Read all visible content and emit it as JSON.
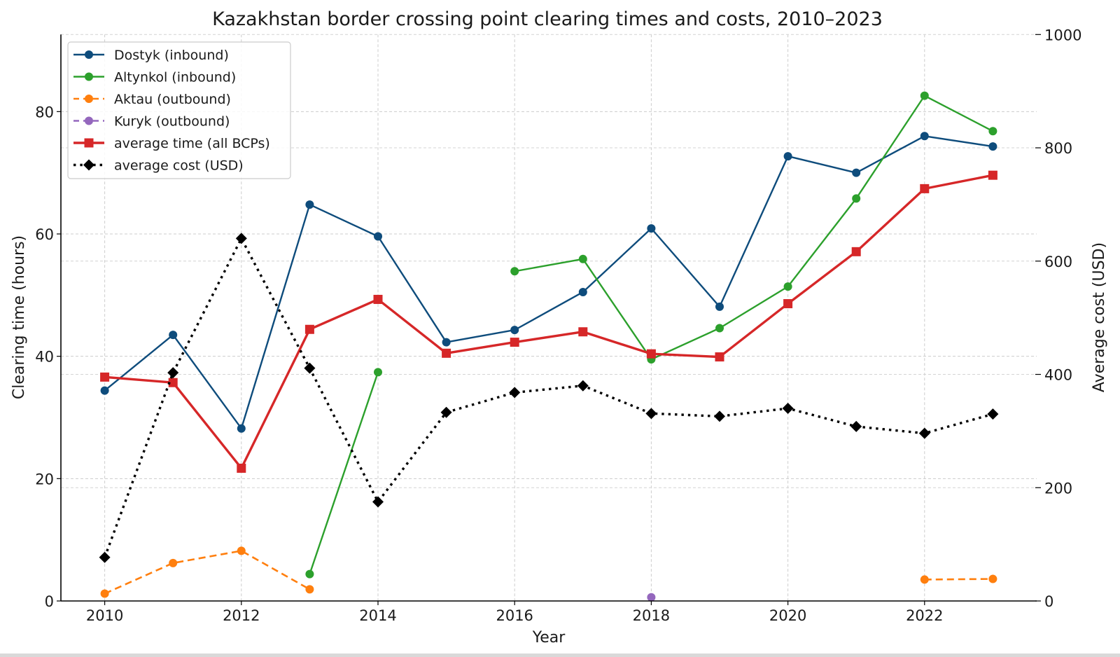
{
  "chart_data": {
    "type": "line",
    "title": "Kazakhstan border crossing point clearing times and costs, 2010–2023",
    "xlabel": "Year",
    "ylabel": "Clearing time (hours)",
    "ylabel_right": "Average cost (USD)",
    "x": [
      2010,
      2011,
      2012,
      2013,
      2014,
      2015,
      2016,
      2017,
      2018,
      2019,
      2020,
      2021,
      2022,
      2023
    ],
    "xlim": [
      2009.4,
      2023.6
    ],
    "ylim": [
      0,
      92.6
    ],
    "ylim_right": [
      0,
      1000
    ],
    "x_ticks": [
      2010,
      2012,
      2014,
      2016,
      2018,
      2020,
      2022
    ],
    "x_tick_labels": [
      "2010",
      "2012",
      "2014",
      "2016",
      "2018",
      "2020",
      "2022"
    ],
    "y_ticks": [
      0,
      20,
      40,
      60,
      80
    ],
    "y_tick_labels": [
      "0",
      "20",
      "40",
      "60",
      "80"
    ],
    "y_right_ticks": [
      0,
      200,
      400,
      600,
      800,
      1000
    ],
    "y_right_tick_labels": [
      "0",
      "200",
      "400",
      "600",
      "800",
      "1000"
    ],
    "grid": true,
    "legend_position": "top-left",
    "series": [
      {
        "name": "Dostyk (inbound)",
        "axis": "left",
        "color": "#0e4c7c",
        "style": "solid",
        "marker": "circle",
        "values": [
          34.4,
          43.5,
          28.2,
          64.8,
          59.6,
          42.3,
          44.3,
          50.5,
          60.9,
          48.1,
          72.7,
          70.0,
          76.0,
          74.3
        ]
      },
      {
        "name": "Altynkol (inbound)",
        "axis": "left",
        "color": "#2ca02c",
        "style": "solid",
        "marker": "circle",
        "values": [
          null,
          null,
          null,
          4.4,
          37.4,
          null,
          53.9,
          55.9,
          39.5,
          44.6,
          51.4,
          65.8,
          82.6,
          76.8
        ]
      },
      {
        "name": "Aktau (outbound)",
        "axis": "left",
        "color": "#ff7f0e",
        "style": "dashed",
        "marker": "circle",
        "values": [
          1.2,
          6.2,
          8.2,
          1.9,
          null,
          null,
          null,
          null,
          null,
          null,
          null,
          null,
          3.5,
          3.6
        ]
      },
      {
        "name": "Kuryk (outbound)",
        "axis": "left",
        "color": "#9467bd",
        "style": "dashed",
        "marker": "circle",
        "values": [
          null,
          null,
          null,
          null,
          null,
          null,
          null,
          null,
          0.6,
          null,
          null,
          null,
          null,
          null
        ]
      },
      {
        "name": "average time (all BCPs)",
        "axis": "left",
        "color": "#d62728",
        "style": "solid-thick",
        "marker": "square",
        "values": [
          36.6,
          35.7,
          21.7,
          44.4,
          49.3,
          40.5,
          42.3,
          44.0,
          40.4,
          39.9,
          48.6,
          57.1,
          67.4,
          69.6
        ]
      },
      {
        "name": "average cost (USD)",
        "axis": "right",
        "color": "#000000",
        "style": "dotted",
        "marker": "diamond",
        "values": [
          77,
          403,
          640,
          411,
          175,
          333,
          368,
          380,
          331,
          326,
          340,
          308,
          296,
          330
        ]
      }
    ]
  }
}
